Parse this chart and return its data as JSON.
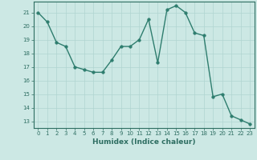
{
  "x": [
    0,
    1,
    2,
    3,
    4,
    5,
    6,
    7,
    8,
    9,
    10,
    11,
    12,
    13,
    14,
    15,
    16,
    17,
    18,
    19,
    20,
    21,
    22,
    23
  ],
  "y": [
    21.0,
    20.3,
    18.8,
    18.5,
    17.0,
    16.8,
    16.6,
    16.6,
    17.5,
    18.5,
    18.5,
    19.0,
    20.5,
    17.3,
    21.2,
    21.5,
    21.0,
    19.5,
    19.3,
    14.8,
    15.0,
    13.4,
    13.1,
    12.8
  ],
  "line_color": "#2e7d6e",
  "marker_color": "#2e7d6e",
  "bg_color": "#cce8e4",
  "grid_color": "#b0d4d0",
  "xlabel": "Humidex (Indice chaleur)",
  "xlim": [
    -0.5,
    23.5
  ],
  "ylim": [
    12.5,
    21.8
  ],
  "yticks": [
    13,
    14,
    15,
    16,
    17,
    18,
    19,
    20,
    21
  ],
  "xticks": [
    0,
    1,
    2,
    3,
    4,
    5,
    6,
    7,
    8,
    9,
    10,
    11,
    12,
    13,
    14,
    15,
    16,
    17,
    18,
    19,
    20,
    21,
    22,
    23
  ],
  "tick_label_color": "#2e6e62",
  "xlabel_color": "#2e6e62",
  "tick_fontsize": 5.0,
  "xlabel_fontsize": 6.5,
  "linewidth": 1.0,
  "markersize": 2.5
}
